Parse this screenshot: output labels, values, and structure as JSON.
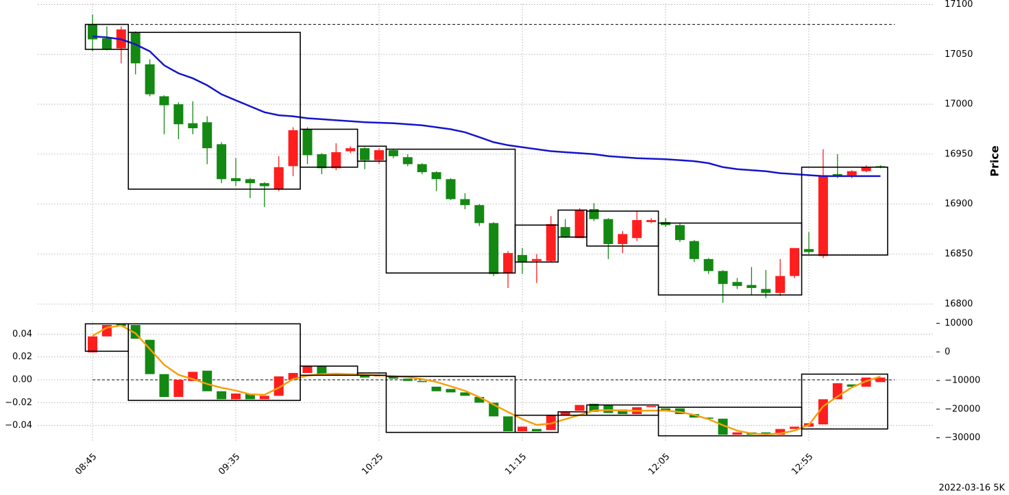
{
  "chart_data": [
    {
      "type": "candlestick",
      "ylabel": "Price",
      "ylim": [
        16792,
        17101
      ],
      "yticks": [
        16800,
        16850,
        16900,
        16950,
        17000,
        17050,
        17100
      ],
      "grid": true,
      "up_color": "#fe1e1e",
      "down_color": "#138813",
      "open": [
        17080,
        17066,
        17056,
        17072,
        17040,
        17008,
        17000,
        16981,
        16982,
        16960,
        16926,
        16925,
        16921,
        16915,
        16938,
        16975,
        16950,
        16936,
        16953,
        16956,
        16944,
        16954,
        16947,
        16940,
        16932,
        16925,
        16905,
        16899,
        16881,
        16831,
        16849,
        16843,
        16843,
        16877,
        16866,
        16895,
        16885,
        16860,
        16866,
        16882,
        16882,
        16879,
        16863,
        16845,
        16833,
        16822,
        16819,
        16815,
        16811,
        16828,
        16855,
        16848,
        16930,
        16929,
        16933,
        16938
      ],
      "high": [
        17090,
        17078,
        17078,
        17073,
        17045,
        17009,
        17002,
        17003,
        16988,
        16962,
        16946,
        16926,
        16922,
        16948,
        16977,
        16977,
        16951,
        16961,
        16958,
        16957,
        16956,
        16955,
        16950,
        16941,
        16933,
        16926,
        16911,
        16900,
        16882,
        16853,
        16856,
        16850,
        16888,
        16885,
        16896,
        16901,
        16886,
        16873,
        16893,
        16886,
        16886,
        16881,
        16864,
        16846,
        16834,
        16826,
        16837,
        16834,
        16845,
        16856,
        16872,
        16955,
        16950,
        16934,
        16939,
        16939
      ],
      "low": [
        17053,
        17054,
        17041,
        17030,
        17008,
        16970,
        16965,
        16970,
        16940,
        16921,
        16918,
        16906,
        16897,
        16913,
        16928,
        16940,
        16930,
        16934,
        16951,
        16935,
        16940,
        16946,
        16938,
        16930,
        16913,
        16904,
        16895,
        16878,
        16828,
        16816,
        16830,
        16821,
        16842,
        16866,
        16866,
        16883,
        16845,
        16851,
        16863,
        16881,
        16877,
        16862,
        16842,
        16830,
        16801,
        16815,
        16809,
        16806,
        16808,
        16826,
        16850,
        16846,
        16926,
        16926,
        16932,
        16936
      ],
      "close": [
        17065,
        17055,
        17075,
        17041,
        17010,
        16999,
        16980,
        16976,
        16956,
        16925,
        16923,
        16921,
        16918,
        16937,
        16974,
        16949,
        16936,
        16952,
        16956,
        16944,
        16954,
        16948,
        16940,
        16932,
        16925,
        16905,
        16899,
        16881,
        16830,
        16851,
        16842,
        16845,
        16880,
        16867,
        16894,
        16885,
        16860,
        16870,
        16884,
        16884,
        16879,
        16864,
        16845,
        16833,
        16820,
        16818,
        16816,
        16811,
        16828,
        16856,
        16852,
        16929,
        16928,
        16933,
        16937,
        16937
      ],
      "series": [
        {
          "color": "#1414cc",
          "values": [
            17068,
            17067,
            17065,
            17060,
            17053,
            17039,
            17031,
            17026,
            17019,
            17010,
            17004,
            16998,
            16992,
            16989,
            16988,
            16986,
            16985,
            16984,
            16983,
            16982,
            16981.5,
            16981,
            16980,
            16979,
            16977,
            16975,
            16972,
            16967,
            16962,
            16959,
            16957,
            16955,
            16953,
            16952,
            16951,
            16950,
            16948,
            16947,
            16946,
            16945.5,
            16945,
            16944,
            16943,
            16941,
            16937,
            16935,
            16934,
            16933,
            16931,
            16930,
            16929,
            16928,
            16928,
            16928,
            16928,
            16928
          ]
        }
      ],
      "boxes": [
        {
          "first": 0,
          "last": 2,
          "high": 17080,
          "low": 17055
        },
        {
          "first": 3,
          "last": 14,
          "high": 17072,
          "low": 16915
        },
        {
          "first": 15,
          "last": 18,
          "high": 16975,
          "low": 16937
        },
        {
          "first": 19,
          "last": 20,
          "high": 16958,
          "low": 16943
        },
        {
          "first": 21,
          "last": 29,
          "high": 16955,
          "low": 16831
        },
        {
          "first": 30,
          "last": 32,
          "high": 16879,
          "low": 16842
        },
        {
          "first": 33,
          "last": 34,
          "high": 16894,
          "low": 16867
        },
        {
          "first": 35,
          "last": 39,
          "high": 16893,
          "low": 16858
        },
        {
          "first": 40,
          "last": 49,
          "high": 16881,
          "low": 16809
        },
        {
          "first": 50,
          "last": 55,
          "high": 16937,
          "low": 16849
        }
      ],
      "hline": 17080
    },
    {
      "type": "candlestick",
      "categories": [
        "08:45",
        null,
        null,
        null,
        null,
        null,
        null,
        null,
        null,
        null,
        "09:35",
        null,
        null,
        null,
        null,
        null,
        null,
        null,
        null,
        null,
        "10:25",
        null,
        null,
        null,
        null,
        null,
        null,
        null,
        null,
        null,
        "11:15",
        null,
        null,
        null,
        null,
        null,
        null,
        null,
        null,
        null,
        "12:05",
        null,
        null,
        null,
        null,
        null,
        null,
        null,
        null,
        null,
        "12:55",
        null,
        null,
        null,
        null,
        null
      ],
      "ylim": [
        -0.054,
        0.051
      ],
      "yticks": [
        {
          "value": -0.04,
          "label": "−0.04"
        },
        {
          "value": -0.02,
          "label": "−0.02"
        },
        {
          "value": 0,
          "label": "0.00"
        },
        0.02,
        0.04
      ],
      "y2lim": [
        -31300,
        10600
      ],
      "y2ticks": [
        {
          "value": -30000,
          "label": "−30000"
        },
        {
          "value": -20000,
          "label": "−20000"
        },
        {
          "value": -10000,
          "label": "−10000"
        },
        0,
        10000
      ],
      "grid": true,
      "up_color": "#fe1e1e",
      "down_color": "#138813",
      "open": [
        0.024,
        0.038,
        0.049,
        0.048,
        0.035,
        0.005,
        -0.015,
        -0.001,
        0.008,
        -0.01,
        -0.017,
        -0.012,
        -0.017,
        -0.014,
        0.0,
        0.006,
        0.012,
        0.004,
        0.005,
        0.004,
        0.003,
        0.003,
        0.001,
        -0.001,
        -0.006,
        -0.008,
        -0.011,
        -0.015,
        -0.02,
        -0.032,
        -0.045,
        -0.043,
        -0.044,
        -0.031,
        -0.027,
        -0.021,
        -0.022,
        -0.026,
        -0.03,
        -0.024,
        -0.025,
        -0.025,
        -0.03,
        -0.033,
        -0.034,
        -0.048,
        -0.046,
        -0.046,
        -0.048,
        -0.043,
        -0.041,
        -0.039,
        -0.017,
        -0.004,
        -0.006,
        -0.002
      ],
      "close": [
        0.038,
        0.048,
        0.047,
        0.036,
        0.005,
        -0.015,
        0.0,
        0.007,
        -0.01,
        -0.017,
        -0.012,
        -0.017,
        -0.014,
        0.003,
        0.006,
        0.012,
        0.005,
        0.005,
        0.004,
        0.002,
        0.004,
        0.001,
        -0.001,
        -0.002,
        -0.01,
        -0.011,
        -0.014,
        -0.02,
        -0.032,
        -0.045,
        -0.041,
        -0.045,
        -0.031,
        -0.028,
        -0.022,
        -0.028,
        -0.029,
        -0.03,
        -0.024,
        -0.023,
        -0.027,
        -0.03,
        -0.033,
        -0.034,
        -0.048,
        -0.046,
        -0.048,
        -0.048,
        -0.043,
        -0.041,
        -0.038,
        -0.017,
        -0.003,
        -0.006,
        0.002,
        0.002
      ],
      "series": [
        {
          "color": "#f5a00a",
          "axis": "y2",
          "values": [
            5600,
            8500,
            9200,
            6500,
            1000,
            -4500,
            -8000,
            -9500,
            -11200,
            -12500,
            -13500,
            -14800,
            -15000,
            -12500,
            -9500,
            -8300,
            -7800,
            -7600,
            -7800,
            -8000,
            -8200,
            -8500,
            -8800,
            -9500,
            -10500,
            -12000,
            -13600,
            -15800,
            -18400,
            -21000,
            -23500,
            -25500,
            -25000,
            -23500,
            -22000,
            -20500,
            -20300,
            -20500,
            -20600,
            -20500,
            -20500,
            -21000,
            -22000,
            -23500,
            -25600,
            -27500,
            -28500,
            -28800,
            -28500,
            -27500,
            -25500,
            -19000,
            -15600,
            -12400,
            -10200,
            -8600
          ]
        }
      ],
      "boxes": [
        {
          "first": 0,
          "last": 2,
          "high": 0.049,
          "low": 0.025
        },
        {
          "first": 3,
          "last": 14,
          "high": 0.049,
          "low": -0.018
        },
        {
          "first": 15,
          "last": 18,
          "high": 0.012,
          "low": 0.004
        },
        {
          "first": 19,
          "last": 20,
          "high": 0.006,
          "low": 0.004
        },
        {
          "first": 21,
          "last": 29,
          "high": 0.003,
          "low": -0.046
        },
        {
          "first": 30,
          "last": 32,
          "high": -0.031,
          "low": -0.046
        },
        {
          "first": 33,
          "last": 34,
          "high": -0.028,
          "low": -0.031
        },
        {
          "first": 35,
          "last": 39,
          "high": -0.022,
          "low": -0.031
        },
        {
          "first": 40,
          "last": 49,
          "high": -0.024,
          "low": -0.049
        },
        {
          "first": 50,
          "last": 55,
          "high": 0.005,
          "low": -0.043
        }
      ],
      "hline": 0
    }
  ],
  "footer": "2022-03-16 5K"
}
